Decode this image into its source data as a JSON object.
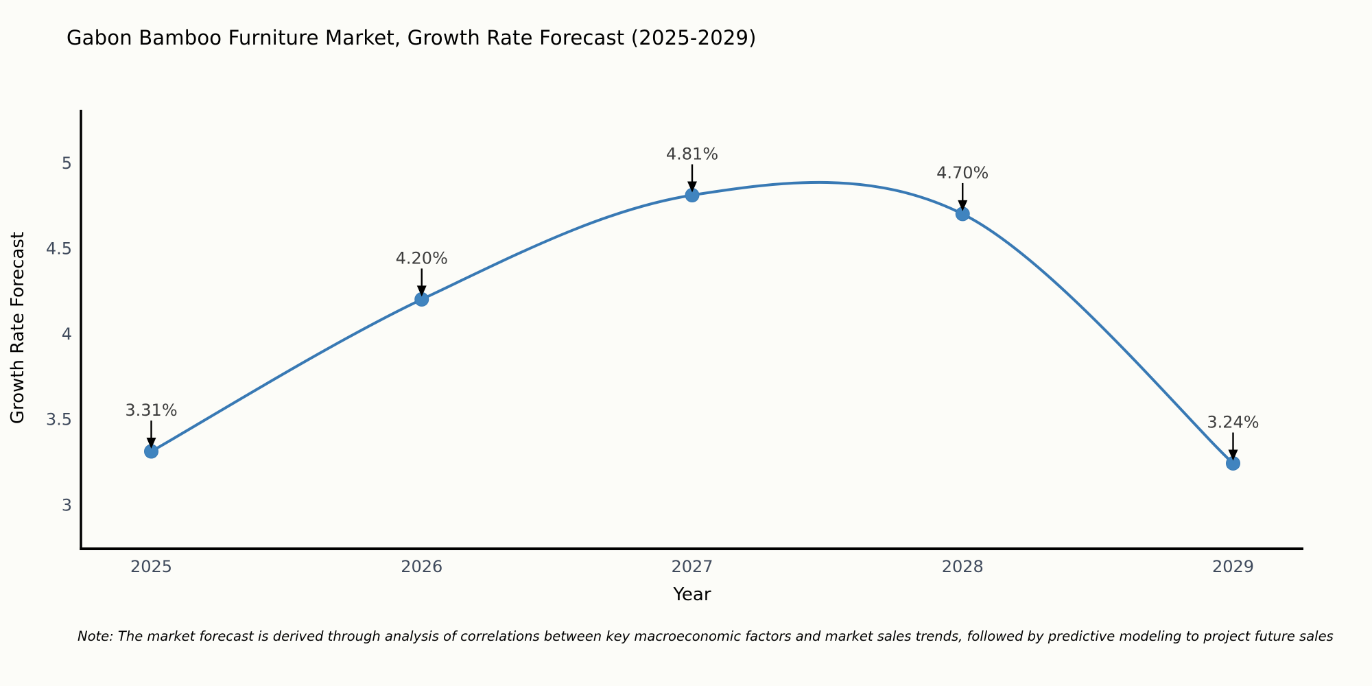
{
  "title": "Gabon Bamboo Furniture Market, Growth Rate Forecast (2025-2029)",
  "note": "Note: The market forecast is derived through analysis of correlations between key macroeconomic factors and market sales trends, followed by predictive modeling to project future sales",
  "chart_data": {
    "type": "line",
    "line_shape": "spline",
    "title": "Gabon Bamboo Furniture Market, Growth Rate Forecast (2025-2029)",
    "xlabel": "Year",
    "ylabel": "Growth Rate Forecast",
    "x": [
      2025,
      2026,
      2027,
      2028,
      2029
    ],
    "values": [
      3.31,
      4.2,
      4.81,
      4.7,
      3.24
    ],
    "point_labels": [
      "3.31%",
      "4.20%",
      "4.81%",
      "4.70%",
      "3.24%"
    ],
    "xticks": [
      2025,
      2026,
      2027,
      2028,
      2029
    ],
    "xtick_labels": [
      "2025",
      "2026",
      "2027",
      "2028",
      "2029"
    ],
    "yticks": [
      3,
      3.5,
      4,
      4.5,
      5
    ],
    "ytick_labels": [
      "3",
      "3.5",
      "4",
      "4.5",
      "5"
    ],
    "xlim": [
      2024.74,
      2029.26
    ],
    "ylim": [
      2.74,
      5.31
    ],
    "grid": false,
    "legend": false,
    "annotation_style": "value label above each point with black arrow pointing down to marker"
  },
  "colors": {
    "line": "#3879b4",
    "marker": "#4084bf",
    "arrow": "#000000",
    "axis": "#000000",
    "title_text": "#2e3b52",
    "tick_text": "#3f4a5c",
    "annotation_text": "#3d3d3d",
    "note_text": "#111111",
    "background": "#fcfcf8"
  }
}
